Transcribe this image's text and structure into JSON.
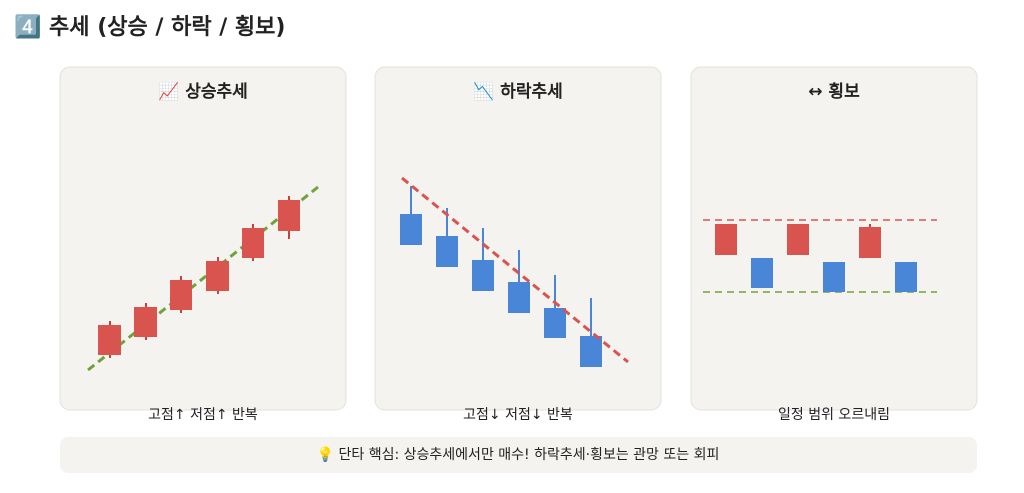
{
  "header": {
    "title": "4️⃣ 추세 (상승 / 하락 / 횡보)"
  },
  "panels": [
    {
      "title": "📈 상승추세",
      "caption": "고점↑ 저점↑ 반복"
    },
    {
      "title": "📉 하락추세",
      "caption": "고점↓ 저점↓ 반복"
    },
    {
      "title": "↔ 횡보",
      "caption": "일정 범위 오르내림"
    }
  ],
  "footer": {
    "text": "💡 단타 핵심: 상승추세에서만 매수! 하락추세·횡보는 관망 또는 회피"
  }
}
